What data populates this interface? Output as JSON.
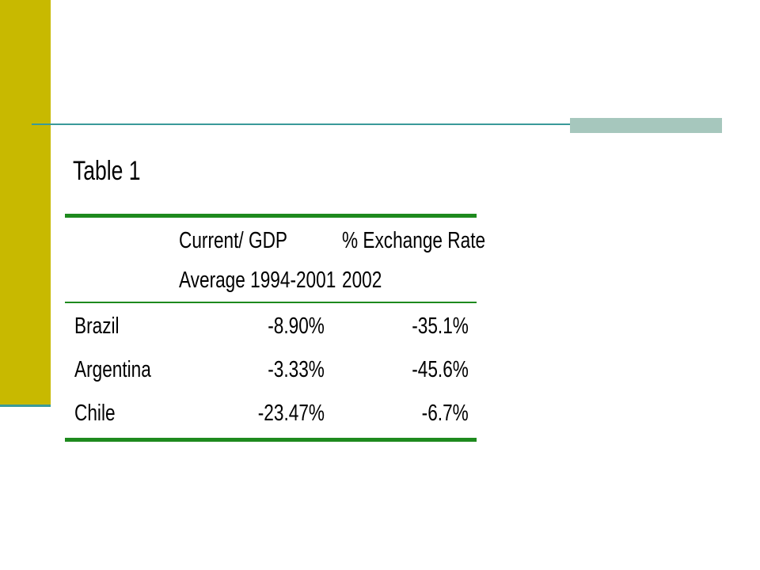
{
  "slide": {
    "title": "Table 1"
  },
  "table": {
    "headers": {
      "col1_line1": "Current/ GDP",
      "col1_line2": "Average 1994-2001",
      "col2_line1": "% Exchange Rate",
      "col2_line2": "2002"
    },
    "rows": [
      {
        "country": "Brazil",
        "current_gdp": "-8.90%",
        "exchange_rate": "-35.1%"
      },
      {
        "country": "Argentina",
        "current_gdp": "-3.33%",
        "exchange_rate": "-45.6%"
      },
      {
        "country": "Chile",
        "current_gdp": "-23.47%",
        "exchange_rate": "-6.7%"
      }
    ]
  },
  "colors": {
    "left_bar": "#c8b900",
    "accent_teal": "#3a9a9a",
    "accent_block": "#a6c7bd",
    "table_rules": "#1e8a1e"
  }
}
